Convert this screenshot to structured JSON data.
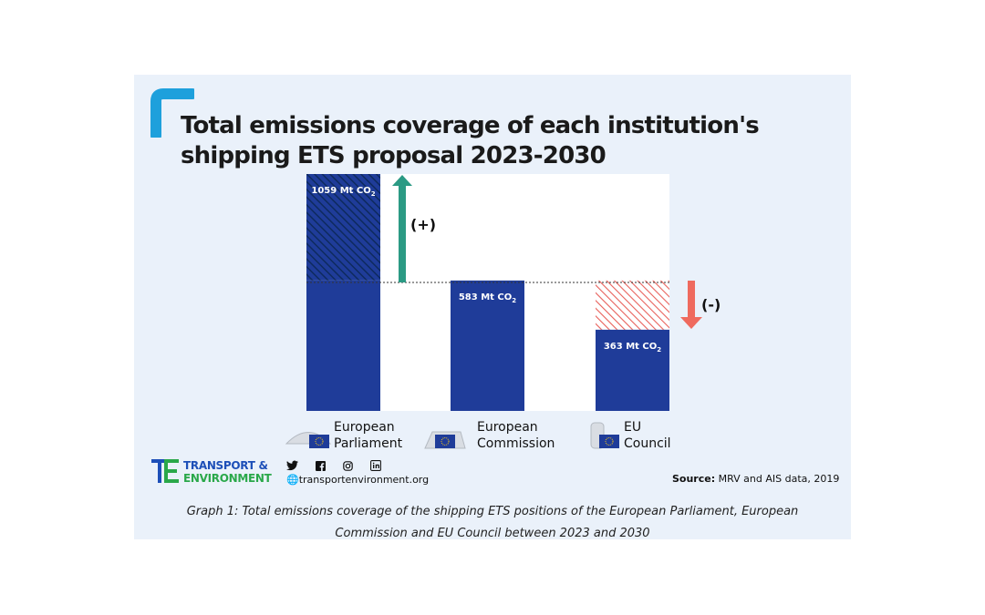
{
  "title": "Total emissions coverage of each institution's shipping ETS proposal 2023-2030",
  "colors": {
    "bar": "#1f3c99",
    "hatch_increase": "#14336f",
    "hatch_decrease": "#e8605a",
    "arrow_up": "#2b9a84",
    "arrow_down": "#ef6a5e",
    "background": "#eaf1fa"
  },
  "chart_data": {
    "type": "bar",
    "categories": [
      "European Parliament",
      "European Commission",
      "EU Council"
    ],
    "values": [
      1059,
      583,
      363
    ],
    "unit": "Mt CO2",
    "baseline": 583,
    "data_labels": [
      "1059 Mt CO",
      "583 Mt CO",
      "363 Mt CO"
    ],
    "data_label_subscript": "2",
    "annotations": {
      "increase": "(+)",
      "decrease": "(-)"
    },
    "grid": false,
    "legend": "none"
  },
  "institutions": [
    {
      "line1": "European",
      "line2": "Parliament",
      "icon": "parliament-icon"
    },
    {
      "line1": "European",
      "line2": "Commission",
      "icon": "commission-icon"
    },
    {
      "line1": "EU",
      "line2": "Council",
      "icon": "council-icon"
    }
  ],
  "footer": {
    "logo_line1": "TRANSPORT &",
    "logo_line2": "ENVIRONMENT",
    "social_icons": [
      "twitter-icon",
      "facebook-icon",
      "instagram-icon",
      "linkedin-icon"
    ],
    "website": "transportenvironment.org",
    "source_label": "Source:",
    "source_text": "MRV and AIS data, 2019"
  },
  "caption_line1": "Graph 1: Total emissions coverage of the shipping ETS positions of the European Parliament, European",
  "caption_line2": "Commission and EU Council between 2023 and 2030"
}
